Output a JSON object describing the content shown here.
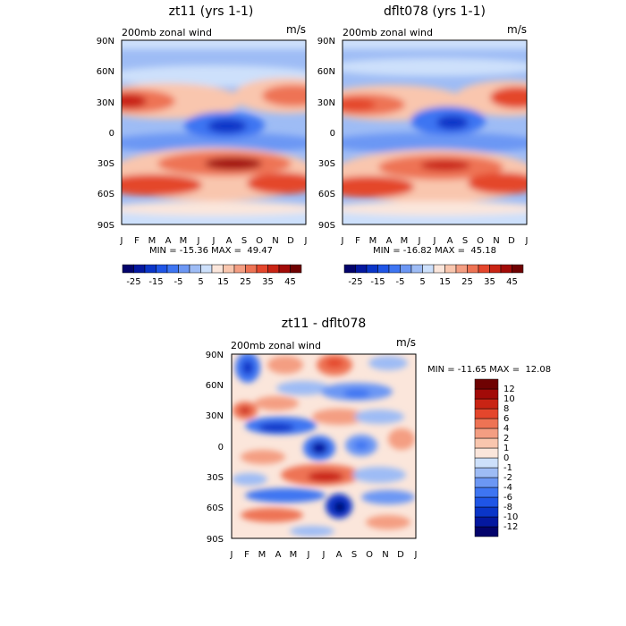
{
  "chart_data": [
    {
      "type": "heatmap",
      "title": "zt11 (yrs 1-1)",
      "variable_label": "200mb zonal wind",
      "units_label": "m/s",
      "min_max_text": "MIN = -15.36 MAX =  49.47",
      "x_tick_labels": [
        "J",
        "F",
        "M",
        "A",
        "M",
        "J",
        "J",
        "A",
        "S",
        "O",
        "N",
        "D",
        "J"
      ],
      "y_tick_labels": [
        "90N",
        "60N",
        "30N",
        "0",
        "30S",
        "60S",
        "90S"
      ],
      "y_values": [
        90,
        60,
        30,
        0,
        -30,
        -60,
        -90
      ],
      "colorbar": {
        "orientation": "horizontal",
        "levels": [
          -25,
          -20,
          -15,
          -10,
          -5,
          0,
          5,
          10,
          15,
          20,
          25,
          30,
          35,
          40,
          45
        ],
        "tick_labels": [
          "-25",
          "-15",
          "-5",
          "5",
          "15",
          "25",
          "35",
          "45"
        ],
        "colors": [
          "#03036b",
          "#0418a0",
          "#0a35c8",
          "#1f55e6",
          "#3e75f2",
          "#6c97f4",
          "#9ebcf5",
          "#cde0fb",
          "#fbe6db",
          "#f9c6ae",
          "#f49e82",
          "#ee7354",
          "#e4462c",
          "#c92414",
          "#a20b08",
          "#6f0202"
        ]
      },
      "features": [
        {
          "x": 0.3,
          "y": 30,
          "value": 44
        },
        {
          "x": 11.5,
          "y": 30,
          "value": 32
        },
        {
          "x": 7,
          "y": -27,
          "value": 42
        },
        {
          "x": 6.5,
          "y": 5,
          "value": -15
        },
        {
          "x": 1.5,
          "y": -50,
          "value": 33
        },
        {
          "x": 11,
          "y": -50,
          "value": 27
        }
      ]
    },
    {
      "type": "heatmap",
      "title": "dflt078 (yrs 1-1)",
      "variable_label": "200mb zonal wind",
      "units_label": "m/s",
      "min_max_text": "MIN = -16.82 MAX =  45.18",
      "x_tick_labels": [
        "J",
        "F",
        "M",
        "A",
        "M",
        "J",
        "J",
        "A",
        "S",
        "O",
        "N",
        "D",
        "J"
      ],
      "y_tick_labels": [
        "90N",
        "60N",
        "30N",
        "0",
        "30S",
        "60S",
        "90S"
      ],
      "y_values": [
        90,
        60,
        30,
        0,
        -30,
        -60,
        -90
      ],
      "colorbar": {
        "orientation": "horizontal",
        "levels": [
          -25,
          -20,
          -15,
          -10,
          -5,
          0,
          5,
          10,
          15,
          20,
          25,
          30,
          35,
          40,
          45
        ],
        "tick_labels": [
          "-25",
          "-15",
          "-5",
          "5",
          "15",
          "25",
          "35",
          "45"
        ],
        "colors": [
          "#03036b",
          "#0418a0",
          "#0a35c8",
          "#1f55e6",
          "#3e75f2",
          "#6c97f4",
          "#9ebcf5",
          "#cde0fb",
          "#fbe6db",
          "#f9c6ae",
          "#f49e82",
          "#ee7354",
          "#e4462c",
          "#c92414",
          "#a20b08",
          "#6f0202"
        ]
      },
      "features": [
        {
          "x": 0.5,
          "y": 30,
          "value": 38
        },
        {
          "x": 11.5,
          "y": 32,
          "value": 35
        },
        {
          "x": 6.5,
          "y": -28,
          "value": 36
        },
        {
          "x": 7,
          "y": 10,
          "value": -16
        },
        {
          "x": 2,
          "y": -50,
          "value": 30
        },
        {
          "x": 11,
          "y": -50,
          "value": 28
        }
      ]
    },
    {
      "type": "heatmap",
      "title": "zt11 - dflt078",
      "variable_label": "200mb zonal wind",
      "units_label": "m/s",
      "min_max_text": "MIN = -11.65 MAX =  12.08",
      "x_tick_labels": [
        "J",
        "F",
        "M",
        "A",
        "M",
        "J",
        "J",
        "A",
        "S",
        "O",
        "N",
        "D",
        "J"
      ],
      "y_tick_labels": [
        "90N",
        "60N",
        "30N",
        "0",
        "30S",
        "60S",
        "90S"
      ],
      "y_values": [
        90,
        60,
        30,
        0,
        -30,
        -60,
        -90
      ],
      "colorbar": {
        "orientation": "vertical",
        "levels": [
          -12,
          -10,
          -8,
          -6,
          -4,
          -2,
          -1,
          0,
          1,
          2,
          4,
          6,
          8,
          10,
          12
        ],
        "tick_labels": [
          "-12",
          "-10",
          "-8",
          "-6",
          "-4",
          "-2",
          "-1",
          "0",
          "1",
          "2",
          "4",
          "6",
          "8",
          "10",
          "12"
        ],
        "colors": [
          "#03036b",
          "#0418a0",
          "#0a35c8",
          "#1f55e6",
          "#3e75f2",
          "#6c97f4",
          "#9ebcf5",
          "#cde0fb",
          "#fbe6db",
          "#f9c6ae",
          "#f49e82",
          "#ee7354",
          "#e4462c",
          "#c92414",
          "#a20b08",
          "#6f0202"
        ]
      },
      "features": [
        {
          "x": 1,
          "y": 75,
          "value": -7
        },
        {
          "x": 6,
          "y": 80,
          "value": 8
        },
        {
          "x": 1,
          "y": 35,
          "value": 8
        },
        {
          "x": 3,
          "y": 20,
          "value": -8
        },
        {
          "x": 5.5,
          "y": 0,
          "value": -9
        },
        {
          "x": 6,
          "y": -28,
          "value": 11
        },
        {
          "x": 7,
          "y": -65,
          "value": -11
        },
        {
          "x": 8.5,
          "y": 50,
          "value": -5
        },
        {
          "x": 10,
          "y": -45,
          "value": -6
        },
        {
          "x": 3,
          "y": -65,
          "value": 6
        }
      ]
    }
  ]
}
